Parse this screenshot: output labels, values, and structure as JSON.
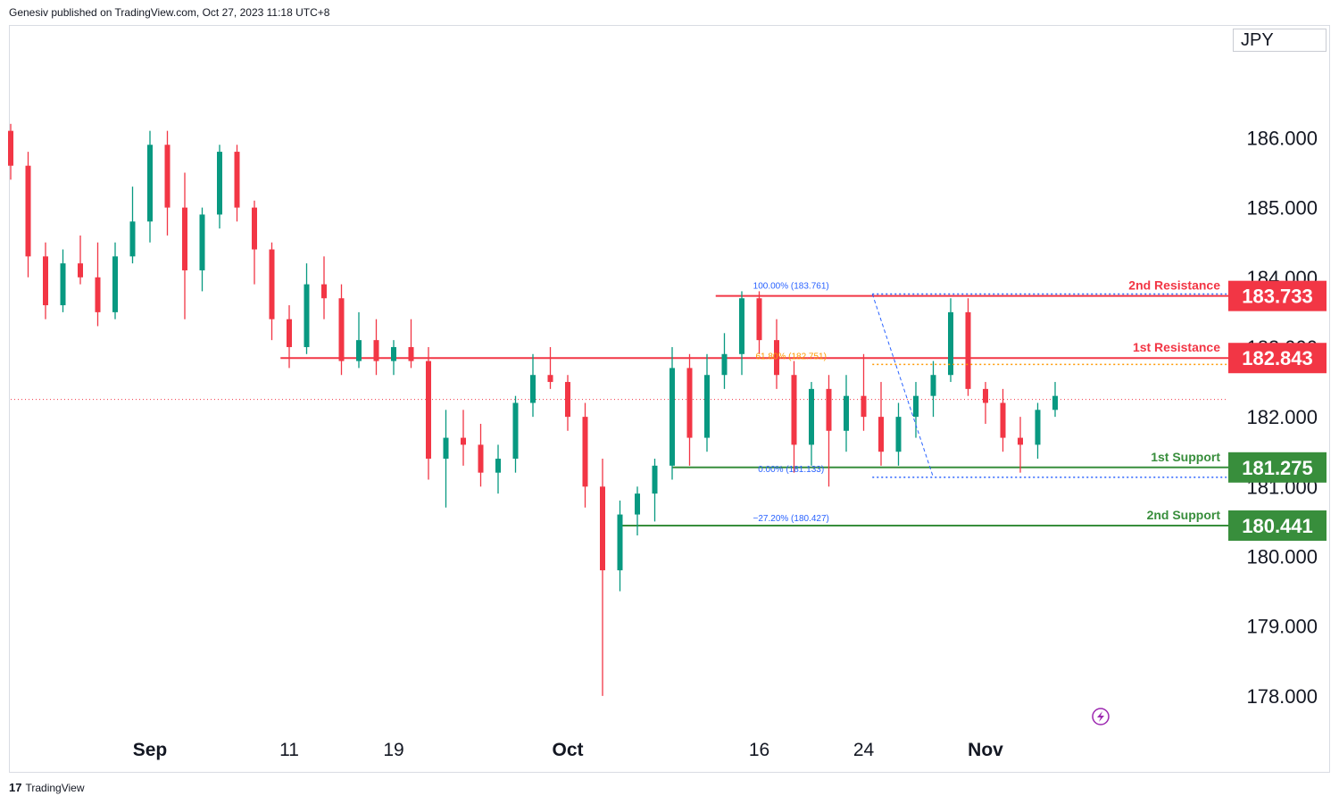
{
  "header": {
    "text": "Genesiv published on TradingView.com, Oct 27, 2023 11:18 UTC+8"
  },
  "currency": "JPY",
  "footer": {
    "logo": "17",
    "brand": "TradingView"
  },
  "colors": {
    "bull": "#089981",
    "bear": "#f23645",
    "resistance": "#f23645",
    "support": "#388e3c",
    "fib_top": "#2962ff",
    "fib_618": "#ff9800",
    "fib_0": "#2962ff"
  },
  "chart_data": {
    "type": "candlestick",
    "y_ticks": [
      "186.000",
      "185.000",
      "184.000",
      "183.000",
      "182.000",
      "181.000",
      "180.000",
      "179.000",
      "178.000"
    ],
    "y_tick_values": [
      186,
      185,
      184,
      183,
      182,
      181,
      180,
      179,
      178
    ],
    "ylim": [
      177.0,
      187.4
    ],
    "x_ticks": [
      {
        "label": "Sep",
        "bold": true,
        "index": 8
      },
      {
        "label": "11",
        "bold": false,
        "index": 16
      },
      {
        "label": "19",
        "bold": false,
        "index": 22
      },
      {
        "label": "Oct",
        "bold": true,
        "index": 32
      },
      {
        "label": "16",
        "bold": false,
        "index": 43
      },
      {
        "label": "24",
        "bold": false,
        "index": 49
      },
      {
        "label": "Nov",
        "bold": true,
        "index": 56
      }
    ],
    "levels": [
      {
        "name": "2nd Resistance",
        "value": 183.733,
        "label": "183.733",
        "kind": "resistance",
        "from_index": 40.5
      },
      {
        "name": "1st Resistance",
        "value": 182.843,
        "label": "182.843",
        "kind": "resistance",
        "from_index": 15.5
      },
      {
        "name": "1st Support",
        "value": 181.275,
        "label": "181.275",
        "kind": "support",
        "from_index": 38
      },
      {
        "name": "2nd Support",
        "value": 180.441,
        "label": "180.441",
        "kind": "support",
        "from_index": 35
      }
    ],
    "fib_labels": [
      {
        "text": "100.00% (183.761)",
        "value": 183.761
      },
      {
        "text": "61.80% (182.751)",
        "value": 182.751
      },
      {
        "text": "0.00% (181.133)",
        "value": 181.133
      },
      {
        "text": "−27.20% (180.427)",
        "value": 180.427
      }
    ],
    "current_price": 182.25,
    "candles": [
      [
        186.1,
        186.2,
        185.4,
        185.6
      ],
      [
        185.6,
        185.8,
        184.0,
        184.3
      ],
      [
        184.3,
        184.5,
        183.4,
        183.6
      ],
      [
        183.6,
        184.4,
        183.5,
        184.2
      ],
      [
        184.2,
        184.6,
        183.9,
        184.0
      ],
      [
        184.0,
        184.5,
        183.3,
        183.5
      ],
      [
        183.5,
        184.5,
        183.4,
        184.3
      ],
      [
        184.3,
        185.3,
        184.2,
        184.8
      ],
      [
        184.8,
        186.1,
        184.5,
        185.9
      ],
      [
        185.9,
        186.1,
        184.6,
        185.0
      ],
      [
        185.0,
        185.5,
        183.4,
        184.1
      ],
      [
        184.1,
        185.0,
        183.8,
        184.9
      ],
      [
        184.9,
        185.9,
        184.7,
        185.8
      ],
      [
        185.8,
        185.9,
        184.8,
        185.0
      ],
      [
        185.0,
        185.1,
        183.9,
        184.4
      ],
      [
        184.4,
        184.5,
        183.1,
        183.4
      ],
      [
        183.4,
        183.6,
        182.7,
        183.0
      ],
      [
        183.0,
        184.2,
        182.9,
        183.9
      ],
      [
        183.9,
        184.3,
        183.4,
        183.7
      ],
      [
        183.7,
        183.9,
        182.6,
        182.8
      ],
      [
        182.8,
        183.5,
        182.7,
        183.1
      ],
      [
        183.1,
        183.4,
        182.6,
        182.8
      ],
      [
        182.8,
        183.1,
        182.6,
        183.0
      ],
      [
        183.0,
        183.4,
        182.7,
        182.8
      ],
      [
        182.8,
        183.0,
        181.1,
        181.4
      ],
      [
        181.4,
        182.1,
        180.7,
        181.7
      ],
      [
        181.7,
        182.1,
        181.3,
        181.6
      ],
      [
        181.6,
        181.9,
        181.0,
        181.2
      ],
      [
        181.2,
        181.6,
        180.9,
        181.4
      ],
      [
        181.4,
        182.3,
        181.2,
        182.2
      ],
      [
        182.2,
        182.9,
        182.0,
        182.6
      ],
      [
        182.6,
        183.0,
        182.4,
        182.5
      ],
      [
        182.5,
        182.6,
        181.8,
        182.0
      ],
      [
        182.0,
        182.2,
        180.7,
        181.0
      ],
      [
        181.0,
        181.4,
        178.0,
        179.8
      ],
      [
        179.8,
        180.8,
        179.5,
        180.6
      ],
      [
        180.6,
        181.0,
        180.3,
        180.9
      ],
      [
        180.9,
        181.4,
        180.5,
        181.3
      ],
      [
        181.3,
        183.0,
        181.1,
        182.7
      ],
      [
        182.7,
        182.9,
        181.3,
        181.7
      ],
      [
        181.7,
        182.9,
        181.5,
        182.6
      ],
      [
        182.6,
        183.2,
        182.4,
        182.9
      ],
      [
        182.9,
        183.8,
        182.6,
        183.7
      ],
      [
        183.7,
        183.8,
        182.9,
        183.1
      ],
      [
        183.1,
        183.4,
        182.4,
        182.6
      ],
      [
        182.6,
        182.8,
        181.2,
        181.6
      ],
      [
        181.6,
        182.5,
        181.3,
        182.4
      ],
      [
        182.4,
        182.6,
        181.0,
        181.8
      ],
      [
        181.8,
        182.6,
        181.5,
        182.3
      ],
      [
        182.3,
        182.9,
        181.8,
        182.0
      ],
      [
        182.0,
        182.5,
        181.3,
        181.5
      ],
      [
        181.5,
        182.2,
        181.3,
        182.0
      ],
      [
        182.0,
        182.5,
        181.7,
        182.3
      ],
      [
        182.3,
        182.8,
        182.0,
        182.6
      ],
      [
        182.6,
        183.7,
        182.5,
        183.5
      ],
      [
        183.5,
        183.7,
        182.3,
        182.4
      ],
      [
        182.4,
        182.5,
        181.9,
        182.2
      ],
      [
        182.2,
        182.4,
        181.5,
        181.7
      ],
      [
        181.7,
        182.0,
        181.2,
        181.6
      ],
      [
        181.6,
        182.2,
        181.4,
        182.1
      ],
      [
        182.1,
        182.5,
        182.0,
        182.3
      ]
    ]
  }
}
